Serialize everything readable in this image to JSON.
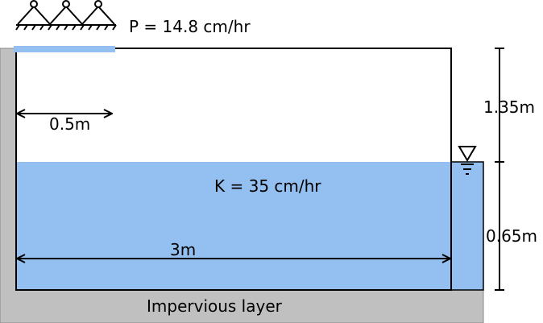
{
  "labels": {
    "infiltration": "P = 14.8 cm/hr",
    "conductivity": "K = 35 cm/hr",
    "sprinkler_width": "0.5m",
    "domain_width": "3m",
    "unsaturated_height": "1.35m",
    "water_depth": "0.65m",
    "base": "Impervious layer"
  },
  "colors": {
    "water": "#93c0f0",
    "impervious": "#c0c0c0",
    "rain_strip": "#93c0f0",
    "outline": "#000000"
  },
  "icons": {
    "sprinkler": "triple-triangle-sprinkler-icon",
    "water_level": "water-table-marker-icon"
  }
}
